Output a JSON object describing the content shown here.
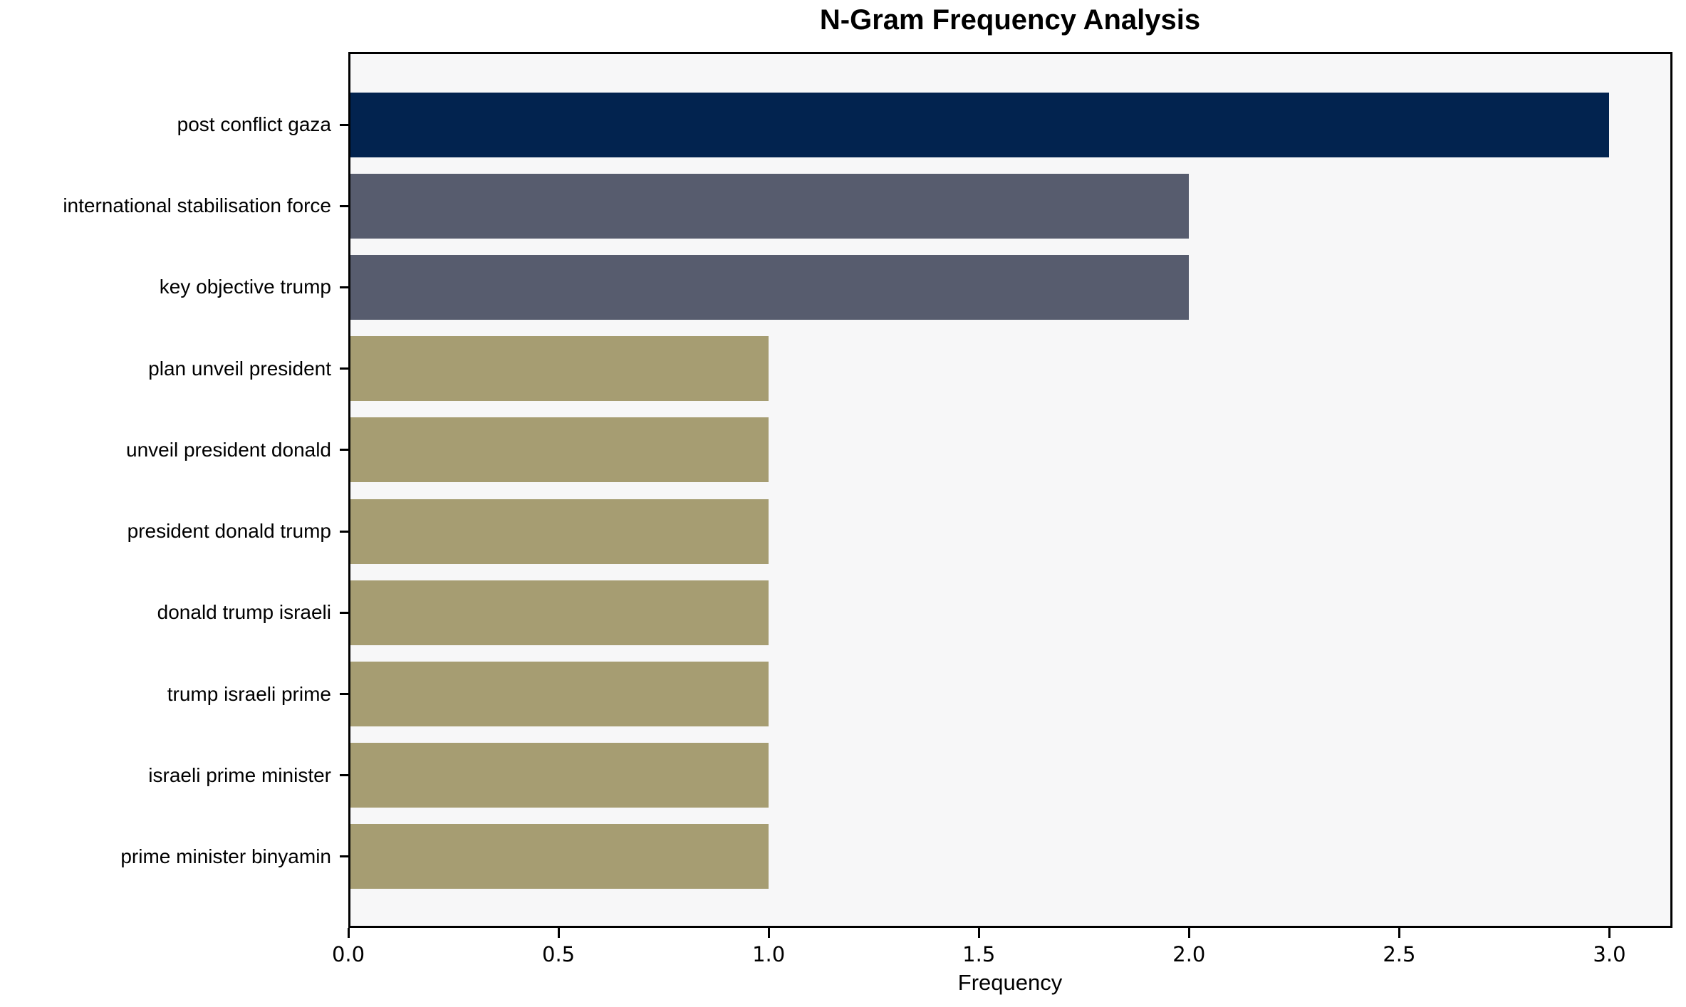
{
  "chart_data": {
    "type": "bar",
    "orientation": "horizontal",
    "title": "N-Gram Frequency Analysis",
    "xlabel": "Frequency",
    "ylabel": "",
    "categories": [
      "post conflict gaza",
      "international stabilisation force",
      "key objective trump",
      "plan unveil president",
      "unveil president donald",
      "president donald trump",
      "donald trump israeli",
      "trump israeli prime",
      "israeli prime minister",
      "prime minister binyamin"
    ],
    "values": [
      3,
      2,
      2,
      1,
      1,
      1,
      1,
      1,
      1,
      1
    ],
    "bar_colors": [
      "#02234f",
      "#575c6e",
      "#575c6e",
      "#a69d72",
      "#a69d72",
      "#a69d72",
      "#a69d72",
      "#a69d72",
      "#a69d72",
      "#a69d72"
    ],
    "x_ticks": [
      "0.0",
      "0.5",
      "1.0",
      "1.5",
      "2.0",
      "2.5",
      "3.0"
    ],
    "xlim": [
      0,
      3.15
    ],
    "grid": false,
    "legend": null,
    "plot_bg": "#f7f7f8",
    "figure_bg": "#ffffff",
    "spine_color": "#000000",
    "text_color": "#000000"
  }
}
